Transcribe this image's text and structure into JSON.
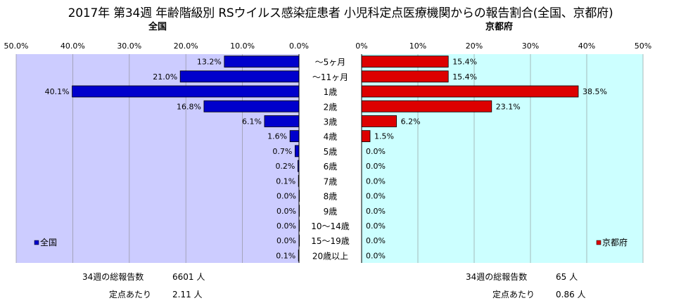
{
  "title": "2017年 第34週 年齢階級別 RSウイルス感染症患者 小児科定点医療機関からの報告割合(全国、京都府)",
  "colors": {
    "left_bar": "#0000cc",
    "right_bar": "#dd0000",
    "left_bg": "#ccccff",
    "right_bg": "#ccffff"
  },
  "chart_data": [
    {
      "type": "bar",
      "orientation": "horizontal",
      "direction": "right-to-left",
      "title": "全国",
      "categories": [
        "〜5ヶ月",
        "〜11ヶ月",
        "1歳",
        "2歳",
        "3歳",
        "4歳",
        "5歳",
        "6歳",
        "7歳",
        "8歳",
        "9歳",
        "10〜14歳",
        "15〜19歳",
        "20歳以上"
      ],
      "series": [
        {
          "name": "全国",
          "values": [
            13.2,
            21.0,
            40.1,
            16.8,
            6.1,
            1.6,
            0.7,
            0.2,
            0.1,
            0.0,
            0.0,
            0.0,
            0.0,
            0.1
          ]
        }
      ],
      "value_labels": [
        "13.2%",
        "21.0%",
        "40.1%",
        "16.8%",
        "6.1%",
        "1.6%",
        "0.7%",
        "0.2%",
        "0.1%",
        "0.0%",
        "0.0%",
        "0.0%",
        "0.0%",
        "0.1%"
      ],
      "xlim": [
        0,
        50
      ],
      "ticks": [
        "50.0%",
        "40.0%",
        "30.0%",
        "20.0%",
        "10.0%",
        "0.0%"
      ],
      "grid": true,
      "legend": "bottom-left"
    },
    {
      "type": "bar",
      "orientation": "horizontal",
      "direction": "left-to-right",
      "title": "京都府",
      "categories": [
        "〜5ヶ月",
        "〜11ヶ月",
        "1歳",
        "2歳",
        "3歳",
        "4歳",
        "5歳",
        "6歳",
        "7歳",
        "8歳",
        "9歳",
        "10〜14歳",
        "15〜19歳",
        "20歳以上"
      ],
      "series": [
        {
          "name": "京都府",
          "values": [
            15.4,
            15.4,
            38.5,
            23.1,
            6.2,
            1.5,
            0.0,
            0.0,
            0.0,
            0.0,
            0.0,
            0.0,
            0.0,
            0.0
          ]
        }
      ],
      "value_labels": [
        "15.4%",
        "15.4%",
        "38.5%",
        "23.1%",
        "6.2%",
        "1.5%",
        "0.0%",
        "0.0%",
        "0.0%",
        "0.0%",
        "0.0%",
        "0.0%",
        "0.0%",
        "0.0%"
      ],
      "xlim": [
        0,
        50
      ],
      "ticks": [
        "0%",
        "10%",
        "20%",
        "30%",
        "40%",
        "50%"
      ],
      "grid": true,
      "legend": "bottom-right"
    }
  ],
  "footer": {
    "national": {
      "total_label": "34週の総報告数",
      "total_value": "6601 人",
      "per_label": "定点あたり",
      "per_value": "2.11 人"
    },
    "kyoto": {
      "total_label": "34週の総報告数",
      "total_value": "65 人",
      "per_label": "定点あたり",
      "per_value": "0.86 人"
    }
  }
}
